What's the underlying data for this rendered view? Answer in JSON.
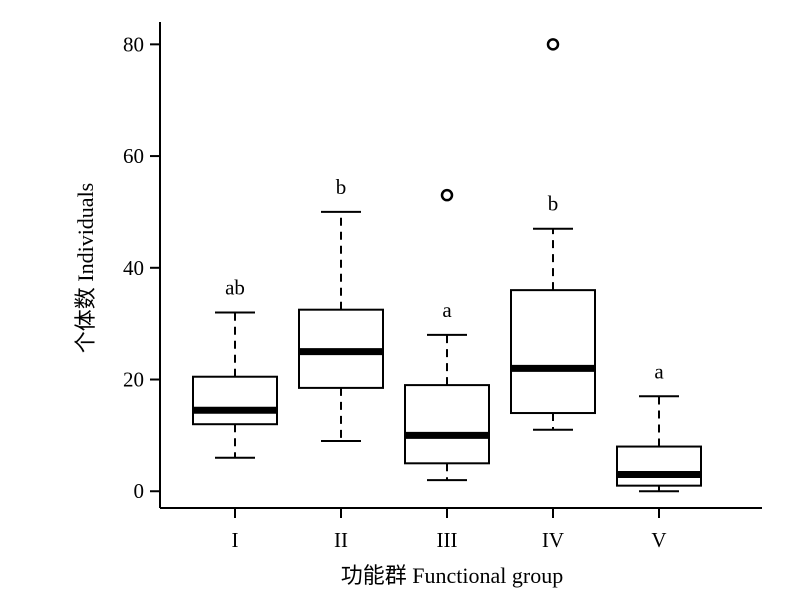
{
  "chart_data": {
    "type": "boxplot",
    "title": "",
    "xlabel": "功能群 Functional group",
    "ylabel": "个体数 Individuals",
    "ylim": [
      -3,
      84
    ],
    "yticks": [
      0,
      20,
      40,
      60,
      80
    ],
    "categories": [
      "I",
      "II",
      "III",
      "IV",
      "V"
    ],
    "boxes": [
      {
        "category": "I",
        "whisker_low": 6,
        "q1": 12,
        "median": 14.5,
        "q3": 20.5,
        "whisker_high": 32,
        "outliers": [],
        "significance": "ab"
      },
      {
        "category": "II",
        "whisker_low": 9,
        "q1": 18.5,
        "median": 25,
        "q3": 32.5,
        "whisker_high": 50,
        "outliers": [],
        "significance": "b"
      },
      {
        "category": "III",
        "whisker_low": 2,
        "q1": 5,
        "median": 10,
        "q3": 19,
        "whisker_high": 28,
        "outliers": [
          53
        ],
        "significance": "a"
      },
      {
        "category": "IV",
        "whisker_low": 11,
        "q1": 14,
        "median": 22,
        "q3": 36,
        "whisker_high": 47,
        "outliers": [
          80
        ],
        "significance": "b"
      },
      {
        "category": "V",
        "whisker_low": 0,
        "q1": 1,
        "median": 3,
        "q3": 8,
        "whisker_high": 17,
        "outliers": [],
        "significance": "a"
      }
    ],
    "grid": false,
    "legend": "none"
  }
}
